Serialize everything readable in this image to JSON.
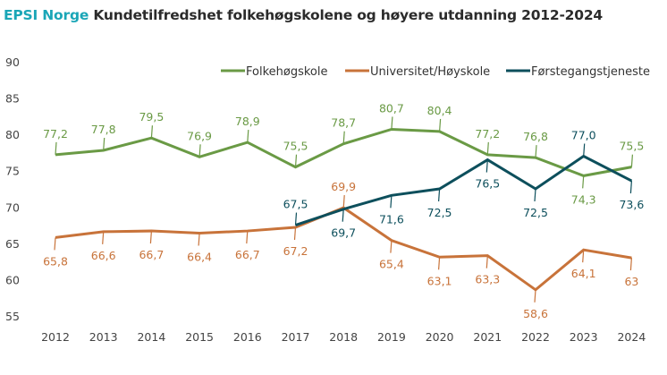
{
  "title": {
    "brand": "EPSI Norge",
    "text": "Kundetilfredshet folkehøgskolene og høyere utdanning 2012-2024"
  },
  "chart_data": {
    "type": "line",
    "title": "EPSI Norge Kundetilfredshet folkehøgskolene og høyere utdanning 2012-2024",
    "xlabel": "",
    "ylabel": "",
    "x": [
      "2012",
      "2013",
      "2014",
      "2015",
      "2016",
      "2017",
      "2018",
      "2019",
      "2020",
      "2021",
      "2022",
      "2023",
      "2024"
    ],
    "yticks": [
      "90",
      "85",
      "80",
      "75",
      "70",
      "65",
      "60",
      "55"
    ],
    "ylim": [
      55,
      90
    ],
    "grid": false,
    "legend_position": "top-right",
    "series": [
      {
        "name": "Folkehøgskole",
        "color": "#6a9a45",
        "values": [
          77.2,
          77.8,
          79.5,
          76.9,
          78.9,
          75.5,
          78.7,
          80.7,
          80.4,
          77.2,
          76.8,
          74.3,
          75.5
        ],
        "labels": [
          "77,2",
          "77,8",
          "79,5",
          "76,9",
          "78,9",
          "75,5",
          "78,7",
          "80,7",
          "80,4",
          "77,2",
          "76,8",
          "74,3",
          "75,5"
        ],
        "label_side": [
          "above",
          "above",
          "above",
          "above",
          "above",
          "above",
          "above",
          "above",
          "above",
          "above",
          "above",
          "below",
          "above"
        ]
      },
      {
        "name": "Universitet/Høyskole",
        "color": "#c8733a",
        "values": [
          65.8,
          66.6,
          66.7,
          66.4,
          66.7,
          67.2,
          69.9,
          65.4,
          63.1,
          63.3,
          58.6,
          64.1,
          63
        ],
        "labels": [
          "65,8",
          "66,6",
          "66,7",
          "66,4",
          "66,7",
          "67,2",
          "69,9",
          "65,4",
          "63,1",
          "63,3",
          "58,6",
          "64,1",
          "63"
        ],
        "label_side": [
          "below",
          "below",
          "below",
          "below",
          "below",
          "below",
          "above",
          "below",
          "below",
          "below",
          "below",
          "below",
          "below"
        ]
      },
      {
        "name": "Førstegangstjeneste",
        "color": "#0d4f5c",
        "values": [
          null,
          null,
          null,
          null,
          null,
          67.5,
          69.7,
          71.6,
          72.5,
          76.5,
          72.5,
          77.0,
          73.6
        ],
        "labels": [
          null,
          null,
          null,
          null,
          null,
          "67,5",
          "69,7",
          "71,6",
          "72,5",
          "76,5",
          "72,5",
          "77,0",
          "73,6"
        ],
        "label_side": [
          null,
          null,
          null,
          null,
          null,
          "above",
          "below",
          "below",
          "below",
          "below",
          "below",
          "above",
          "below"
        ]
      }
    ]
  }
}
